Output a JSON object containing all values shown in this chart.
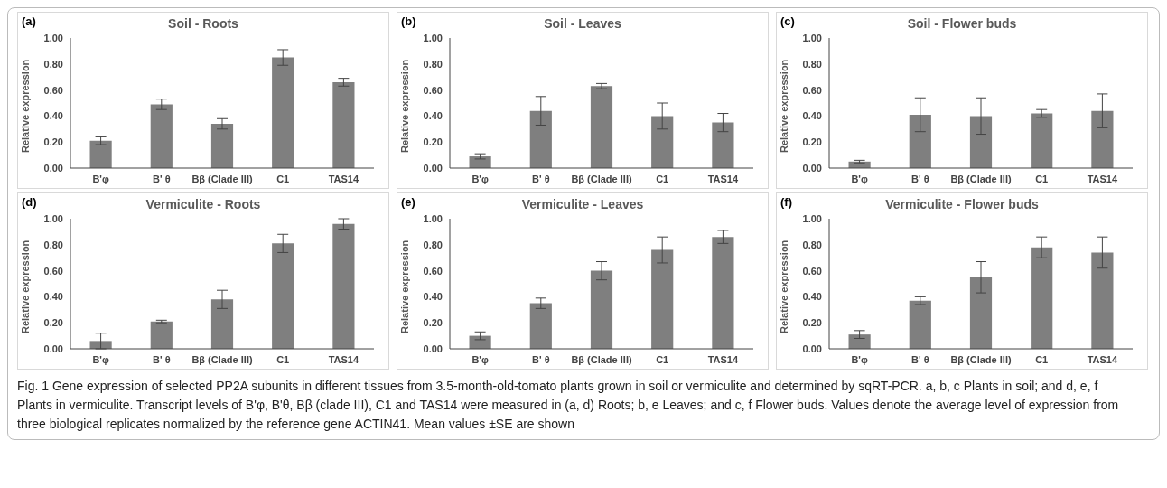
{
  "chart_data": [
    {
      "type": "bar",
      "title": "Soil - Roots",
      "annotations": [
        "(a)"
      ],
      "ylabel": "Relative expression",
      "categories": [
        "B'φ",
        "B' θ",
        "Bβ (Clade III)",
        "C1",
        "TAS14"
      ],
      "values": [
        0.21,
        0.49,
        0.34,
        0.85,
        0.66
      ],
      "errors": [
        0.03,
        0.04,
        0.04,
        0.06,
        0.03
      ],
      "color": "#7f7f7f",
      "ylim": [
        0,
        1
      ],
      "yticks": [
        {
          "value": 0,
          "label": "0.00"
        },
        {
          "value": 0.2,
          "label": "0.20"
        },
        {
          "value": 0.4,
          "label": "0.40"
        },
        {
          "value": 0.6,
          "label": "0.60"
        },
        {
          "value": 0.8,
          "label": "0.80"
        },
        {
          "value": 1,
          "label": "1.00"
        }
      ],
      "grid": false,
      "legend": false
    },
    {
      "type": "bar",
      "title": "Soil - Leaves",
      "annotations": [
        "(b)"
      ],
      "ylabel": "Relative expression",
      "categories": [
        "B'φ",
        "B' θ",
        "Bβ (Clade III)",
        "C1",
        "TAS14"
      ],
      "values": [
        0.09,
        0.44,
        0.63,
        0.4,
        0.35
      ],
      "errors": [
        0.02,
        0.11,
        0.02,
        0.1,
        0.07
      ],
      "color": "#7f7f7f",
      "ylim": [
        0,
        1
      ],
      "yticks": [
        {
          "value": 0,
          "label": "0.00"
        },
        {
          "value": 0.2,
          "label": "0.20"
        },
        {
          "value": 0.4,
          "label": "0.40"
        },
        {
          "value": 0.6,
          "label": "0.60"
        },
        {
          "value": 0.8,
          "label": "0.80"
        },
        {
          "value": 1,
          "label": "1.00"
        }
      ],
      "grid": false,
      "legend": false
    },
    {
      "type": "bar",
      "title": "Soil - Flower buds",
      "annotations": [
        "(c)"
      ],
      "ylabel": "Relative expression",
      "categories": [
        "B'φ",
        "B' θ",
        "Bβ (Clade III)",
        "C1",
        "TAS14"
      ],
      "values": [
        0.05,
        0.41,
        0.4,
        0.42,
        0.44
      ],
      "errors": [
        0.01,
        0.13,
        0.14,
        0.03,
        0.13
      ],
      "color": "#7f7f7f",
      "ylim": [
        0,
        1
      ],
      "yticks": [
        {
          "value": 0,
          "label": "0.00"
        },
        {
          "value": 0.2,
          "label": "0.20"
        },
        {
          "value": 0.4,
          "label": "0.40"
        },
        {
          "value": 0.6,
          "label": "0.60"
        },
        {
          "value": 0.8,
          "label": "0.80"
        },
        {
          "value": 1,
          "label": "1.00"
        }
      ],
      "grid": false,
      "legend": false
    },
    {
      "type": "bar",
      "title": "Vermiculite - Roots",
      "annotations": [
        "(d)"
      ],
      "ylabel": "Relative expression",
      "categories": [
        "B'φ",
        "B' θ",
        "Bβ (Clade III)",
        "C1",
        "TAS14"
      ],
      "values": [
        0.06,
        0.21,
        0.38,
        0.81,
        0.96
      ],
      "errors": [
        0.06,
        0.01,
        0.07,
        0.07,
        0.04
      ],
      "color": "#7f7f7f",
      "ylim": [
        0,
        1
      ],
      "yticks": [
        {
          "value": 0,
          "label": "0.00"
        },
        {
          "value": 0.2,
          "label": "0.20"
        },
        {
          "value": 0.4,
          "label": "0.40"
        },
        {
          "value": 0.6,
          "label": "0.60"
        },
        {
          "value": 0.8,
          "label": "0.80"
        },
        {
          "value": 1,
          "label": "1.00"
        }
      ],
      "grid": false,
      "legend": false
    },
    {
      "type": "bar",
      "title": "Vermiculite - Leaves",
      "annotations": [
        "(e)"
      ],
      "ylabel": "Relative expression",
      "categories": [
        "B'φ",
        "B' θ",
        "Bβ (Clade III)",
        "C1",
        "TAS14"
      ],
      "values": [
        0.1,
        0.35,
        0.6,
        0.76,
        0.86
      ],
      "errors": [
        0.03,
        0.04,
        0.07,
        0.1,
        0.05
      ],
      "color": "#7f7f7f",
      "ylim": [
        0,
        1
      ],
      "yticks": [
        {
          "value": 0,
          "label": "0.00"
        },
        {
          "value": 0.2,
          "label": "0.20"
        },
        {
          "value": 0.4,
          "label": "0.40"
        },
        {
          "value": 0.6,
          "label": "0.60"
        },
        {
          "value": 0.8,
          "label": "0.80"
        },
        {
          "value": 1,
          "label": "1.00"
        }
      ],
      "grid": false,
      "legend": false
    },
    {
      "type": "bar",
      "title": "Vermiculite - Flower buds",
      "annotations": [
        "(f)"
      ],
      "ylabel": "Relative expression",
      "categories": [
        "B'φ",
        "B' θ",
        "Bβ (Clade III)",
        "C1",
        "TAS14"
      ],
      "values": [
        0.11,
        0.37,
        0.55,
        0.78,
        0.74
      ],
      "errors": [
        0.03,
        0.03,
        0.12,
        0.08,
        0.12
      ],
      "color": "#7f7f7f",
      "ylim": [
        0,
        1
      ],
      "yticks": [
        {
          "value": 0,
          "label": "0.00"
        },
        {
          "value": 0.2,
          "label": "0.20"
        },
        {
          "value": 0.4,
          "label": "0.40"
        },
        {
          "value": 0.6,
          "label": "0.60"
        },
        {
          "value": 0.8,
          "label": "0.80"
        },
        {
          "value": 1,
          "label": "1.00"
        }
      ],
      "grid": false,
      "legend": false
    },
    {
      "type": "other",
      "annotations": [
        "Fig. 1 Gene expression of selected PP2A subunits in different tissues from 3.5-month-old-tomato plants grown in soil or vermiculite and determined by sqRT-PCR. a, b, c Plants in soil; and d, e, f Plants in vermiculite. Transcript levels of B'φ, B'θ, Bβ (clade III), C1 and TAS14 were measured in (a, d) Roots; b, e Leaves; and c, f Flower buds. Values denote the average level of expression from three biological replicates normalized by the reference gene ACTIN41. Mean values ±SE are shown"
      ]
    }
  ]
}
